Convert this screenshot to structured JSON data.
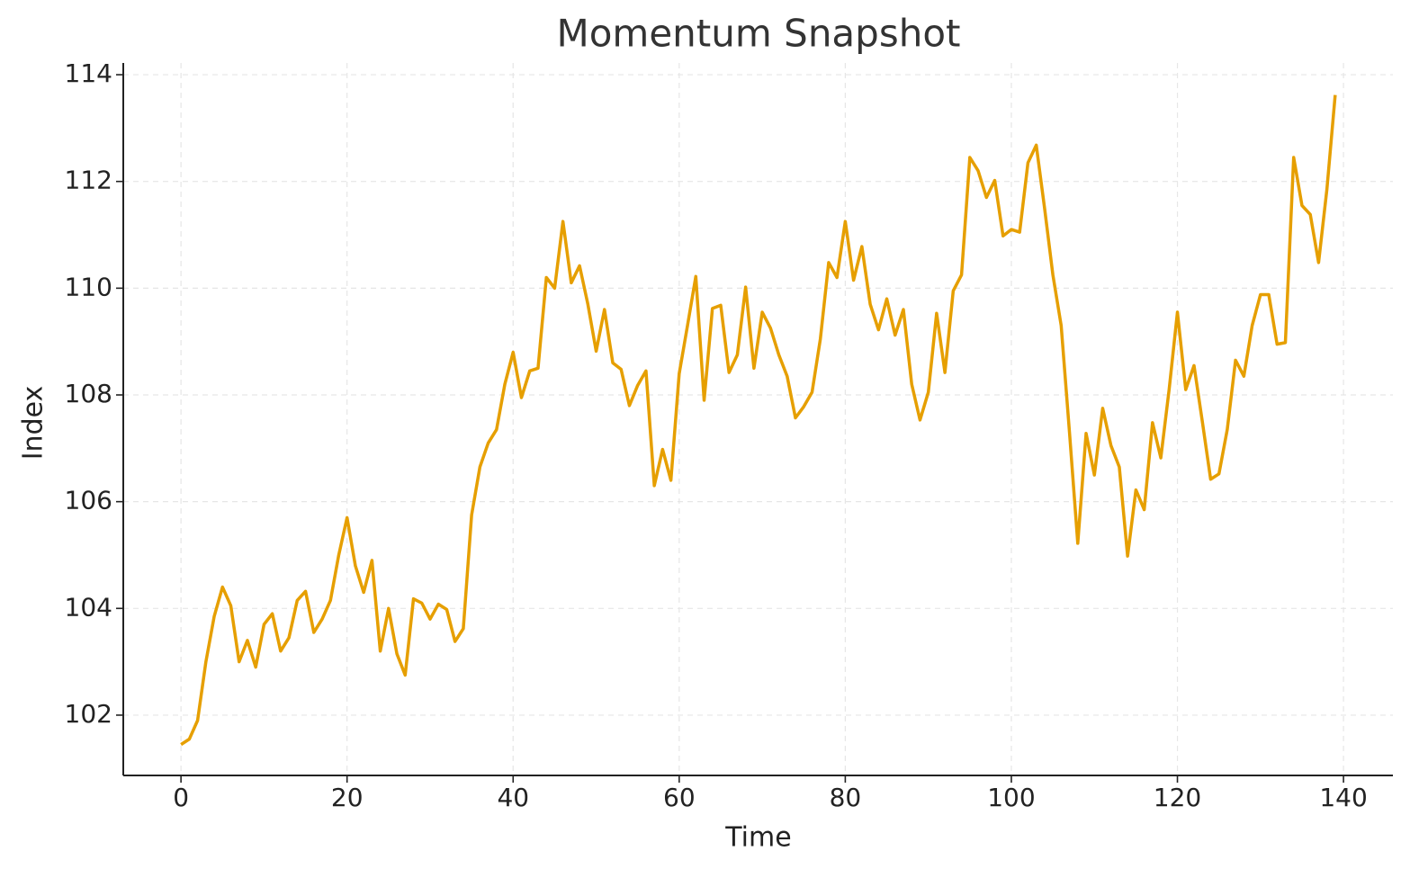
{
  "chart_data": {
    "type": "line",
    "title": "Momentum Snapshot",
    "x_label": "Time",
    "y_label": "Index",
    "x": [
      0,
      1,
      2,
      3,
      4,
      5,
      6,
      7,
      8,
      9,
      10,
      11,
      12,
      13,
      14,
      15,
      16,
      17,
      18,
      19,
      20,
      21,
      22,
      23,
      24,
      25,
      26,
      27,
      28,
      29,
      30,
      31,
      32,
      33,
      34,
      35,
      36,
      37,
      38,
      39,
      40,
      41,
      42,
      43,
      44,
      45,
      46,
      47,
      48,
      49,
      50,
      51,
      52,
      53,
      54,
      55,
      56,
      57,
      58,
      59,
      60,
      61,
      62,
      63,
      64,
      65,
      66,
      67,
      68,
      69,
      70,
      71,
      72,
      73,
      74,
      75,
      76,
      77,
      78,
      79,
      80,
      81,
      82,
      83,
      84,
      85,
      86,
      87,
      88,
      89,
      90,
      91,
      92,
      93,
      94,
      95,
      96,
      97,
      98,
      99,
      100,
      101,
      102,
      103,
      104,
      105,
      106,
      107,
      108,
      109,
      110,
      111,
      112,
      113,
      114,
      115,
      116,
      117,
      118,
      119,
      120,
      121,
      122,
      123,
      124,
      125,
      126,
      127,
      128,
      129,
      130,
      131,
      132,
      133,
      134,
      135,
      136,
      137,
      138,
      139
    ],
    "series": [
      {
        "color": "#e69f00",
        "values": [
          101.45,
          101.55,
          101.9,
          103.0,
          103.85,
          104.4,
          104.05,
          103.0,
          103.4,
          102.9,
          103.7,
          103.9,
          103.2,
          103.45,
          104.15,
          104.32,
          103.55,
          103.8,
          104.15,
          105.0,
          105.7,
          104.8,
          104.3,
          104.9,
          103.2,
          104.0,
          103.15,
          102.75,
          104.18,
          104.1,
          103.8,
          104.08,
          103.98,
          103.38,
          103.62,
          105.75,
          106.65,
          107.1,
          107.35,
          108.2,
          108.8,
          107.95,
          108.45,
          108.5,
          110.2,
          110.0,
          111.25,
          110.1,
          110.42,
          109.7,
          108.82,
          109.6,
          108.6,
          108.48,
          107.8,
          108.18,
          108.45,
          106.3,
          106.98,
          106.4,
          108.4,
          109.3,
          110.22,
          107.9,
          109.62,
          109.68,
          108.42,
          108.75,
          110.02,
          108.5,
          109.55,
          109.25,
          108.75,
          108.35,
          107.57,
          107.78,
          108.05,
          109.05,
          110.48,
          110.2,
          111.25,
          110.15,
          110.78,
          109.7,
          109.22,
          109.8,
          109.12,
          109.6,
          108.2,
          107.53,
          108.05,
          109.53,
          108.42,
          109.95,
          110.25,
          112.45,
          112.2,
          111.7,
          112.02,
          110.98,
          111.1,
          111.05,
          112.35,
          112.68,
          111.5,
          110.25,
          109.3,
          107.3,
          105.22,
          107.28,
          106.5,
          107.75,
          107.05,
          106.65,
          104.98,
          106.22,
          105.85,
          107.48,
          106.82,
          108.1,
          109.55,
          108.1,
          108.55,
          107.5,
          106.42,
          106.52,
          107.35,
          108.65,
          108.35,
          109.3,
          109.88,
          109.88,
          108.95,
          108.98,
          112.45,
          111.55,
          111.38,
          110.48,
          111.85,
          113.62
        ]
      }
    ],
    "xlim": [
      -6.95,
      145.95
    ],
    "ylim": [
      100.87,
      114.22
    ],
    "xticks": [
      0,
      20,
      40,
      60,
      80,
      100,
      120,
      140
    ],
    "yticks": [
      102,
      104,
      106,
      108,
      110,
      112,
      114
    ],
    "grid": true
  }
}
